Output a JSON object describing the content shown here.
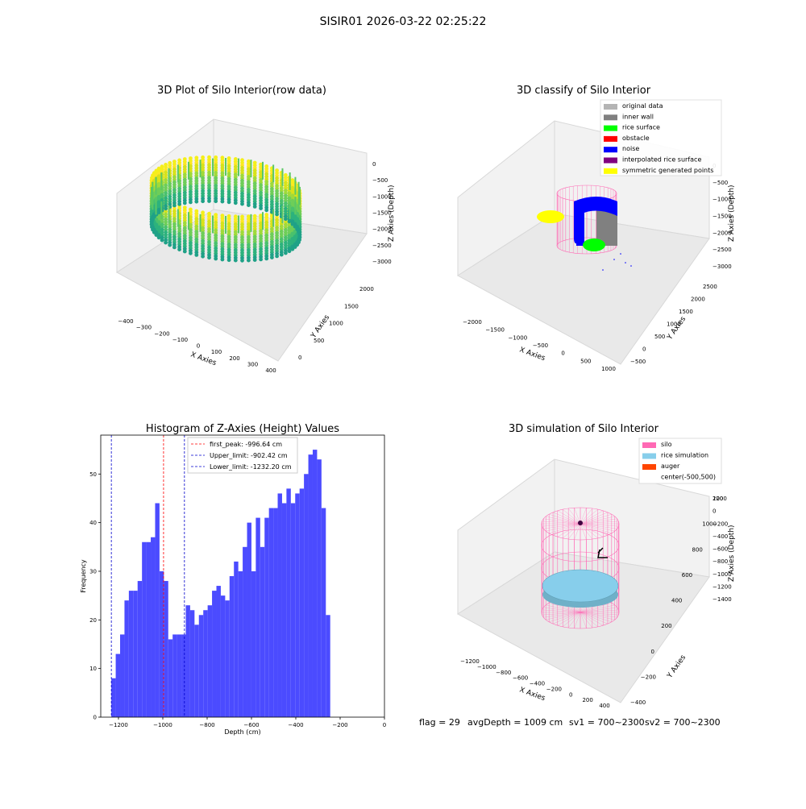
{
  "page": {
    "suptitle": "SISIR01 2026-03-22 02:25:22",
    "status_line": {
      "flag": "flag = 29",
      "avg_depth": "avgDepth = 1009 cm",
      "sv1": "sv1 = 700~2300",
      "sv2": "sv2 = 700~2300"
    }
  },
  "colors": {
    "histogram_bar": "#4b4bff",
    "first_peak": "#ff0000",
    "upper_limit": "#0000cc",
    "lower_limit": "#0000cc",
    "silo": "#ff69b4",
    "rice_sim": "#87ceeb",
    "auger": "#ff4500"
  },
  "chart_data": [
    {
      "type": "scatter3d",
      "title": "3D Plot of Silo Interior(row data)",
      "xlabel": "X Axies",
      "ylabel": "Y Axies",
      "zlabel": "Z Axies (Depth)",
      "x_ticks": [
        "−400",
        "−300",
        "−200",
        "−100",
        "0",
        "100",
        "200",
        "300",
        "400"
      ],
      "y_ticks": [
        "0",
        "500",
        "1000",
        "1500",
        "2000"
      ],
      "z_ticks": [
        "0",
        "−500",
        "−1000",
        "−1500",
        "−2000",
        "−2500",
        "−3000"
      ],
      "xlim": [
        -400,
        400
      ],
      "ylim": [
        0,
        2000
      ],
      "zlim": [
        -3000,
        0
      ],
      "colormap": "viridis"
    },
    {
      "type": "scatter3d",
      "title": "3D classify of Silo Interior",
      "xlabel": "X Axies",
      "ylabel": "Y Axies",
      "zlabel": "Z Axies (Depth)",
      "x_ticks": [
        "−2000",
        "−1500",
        "−1000",
        "−500",
        "0",
        "500",
        "1000"
      ],
      "y_ticks": [
        "−500",
        "0",
        "500",
        "1000",
        "1500",
        "2000",
        "2500"
      ],
      "z_ticks": [
        "0",
        "−500",
        "−1000",
        "−1500",
        "−2000",
        "−2500",
        "−3000"
      ],
      "xlim": [
        -2000,
        1000
      ],
      "ylim": [
        -500,
        2500
      ],
      "zlim": [
        -3000,
        0
      ],
      "legend_position": "top-right",
      "legend": [
        {
          "label": "original data",
          "color": "#b4b4b4"
        },
        {
          "label": "inner wall",
          "color": "#808080"
        },
        {
          "label": "rice surface",
          "color": "#00ff00"
        },
        {
          "label": "obstacle",
          "color": "#ff0000"
        },
        {
          "label": "noise",
          "color": "#0000ff"
        },
        {
          "label": "interpolated rice surface",
          "color": "#800080"
        },
        {
          "label": "symmetric generated points",
          "color": "#ffff00"
        }
      ]
    },
    {
      "type": "bar",
      "title": "Histogram of Z-Axies (Height) Values",
      "xlabel": "Depth (cm)",
      "ylabel": "Frequency",
      "xlim": [
        -1280,
        0
      ],
      "ylim": [
        0,
        58
      ],
      "x_ticks": [
        -1200,
        -1000,
        -800,
        -600,
        -400,
        -200,
        0
      ],
      "y_ticks": [
        0,
        10,
        20,
        30,
        40,
        50
      ],
      "bin_start": -1232.2,
      "bin_width": 19.75,
      "values": [
        8,
        13,
        17,
        24,
        26,
        26,
        28,
        36,
        36,
        37,
        44,
        30,
        28,
        16,
        17,
        17,
        17,
        23,
        22,
        19,
        21,
        22,
        23,
        26,
        27,
        25,
        24,
        29,
        32,
        30,
        35,
        40,
        30,
        41,
        35,
        41,
        43,
        43,
        46,
        44,
        47,
        44,
        46,
        47,
        50,
        54,
        55,
        53,
        43,
        21
      ],
      "vlines": [
        {
          "label": "first_peak: -996.64 cm",
          "x": -996.64,
          "color": "#ff0000"
        },
        {
          "label": "Upper_limit: -902.42 cm",
          "x": -902.42,
          "color": "#0000cc"
        },
        {
          "label": "Lower_limit: -1232.20 cm",
          "x": -1232.2,
          "color": "#0000cc"
        }
      ],
      "legend_position": "top-left"
    },
    {
      "type": "simulation3d",
      "title": "3D simulation of Silo Interior",
      "xlabel": "X Axies",
      "ylabel": "Y Axies",
      "zlabel": "Z Axies (Depth)",
      "x_ticks": [
        "−1200",
        "−1000",
        "−800",
        "−600",
        "−400",
        "−200",
        "0",
        "200",
        "400"
      ],
      "y_ticks": [
        "−400",
        "−200",
        "0",
        "200",
        "400",
        "600",
        "800",
        "1000",
        "1200"
      ],
      "z_ticks": [
        "200",
        "0",
        "−200",
        "−400",
        "−600",
        "−800",
        "−1000",
        "−1200",
        "−1400"
      ],
      "xlim": [
        -1200,
        400
      ],
      "ylim": [
        -400,
        1200
      ],
      "zlim": [
        -1400,
        200
      ],
      "legend_position": "top-right",
      "legend": [
        {
          "label": "silo",
          "color": "#ff69b4"
        },
        {
          "label": "rice simulation",
          "color": "#87ceeb"
        },
        {
          "label": "auger",
          "color": "#ff4500"
        },
        {
          "label": "center(-500,500)",
          "color": "#ffffff"
        }
      ]
    }
  ]
}
